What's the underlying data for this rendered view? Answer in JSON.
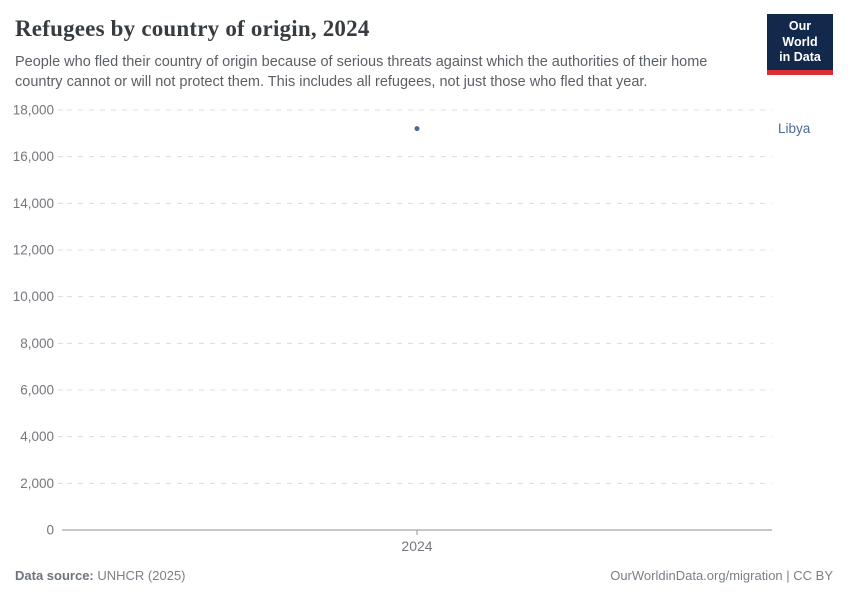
{
  "header": {
    "title": "Refugees by country of origin, 2024",
    "subtitle": "People who fled their country of origin because of serious threats against which the authorities of their home country cannot or will not protect them. This includes all refugees, not just those who fled that year.",
    "logo": {
      "line1": "Our World",
      "line2": "in Data"
    }
  },
  "chart_data": {
    "type": "scatter",
    "title": "Refugees by country of origin, 2024",
    "x": [
      2024
    ],
    "xtick_labels": [
      "2024"
    ],
    "series": [
      {
        "name": "Libya",
        "color": "#4c6a9c",
        "values": [
          17200
        ]
      }
    ],
    "ylim": [
      0,
      18000
    ],
    "ytick_interval": 2000,
    "xlabel": "",
    "ylabel": "",
    "grid": "horizontal-dashed",
    "legend_position": "entity-label-right-of-plot"
  },
  "footer": {
    "source_label": "Data source:",
    "source_value": "UNHCR (2025)",
    "link": "OurWorldinData.org/migration | CC BY"
  },
  "colors": {
    "series": "#4c6a9c",
    "grid": "#dcdcdc",
    "axis": "#8e9196",
    "tick_label": "#74777d",
    "logo_background": "#12294b",
    "logo_underline": "#dc2e34"
  }
}
